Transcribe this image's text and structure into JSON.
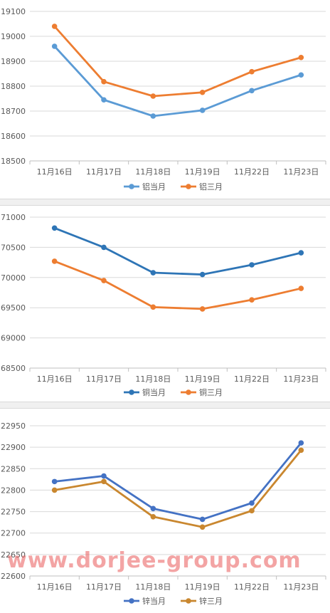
{
  "chart_data": [
    {
      "type": "line",
      "categories": [
        "11月16日",
        "11月17日",
        "11月18日",
        "11月19日",
        "11月22日",
        "11月23日"
      ],
      "ylim": [
        18500,
        19100
      ],
      "yticks": [
        18500,
        18600,
        18700,
        18800,
        18900,
        19000,
        19100
      ],
      "grid": true,
      "legend_position": "bottom",
      "series": [
        {
          "name": "铝当月",
          "color": "#5b9bd5",
          "values": [
            18960,
            18745,
            18680,
            18703,
            18782,
            18845
          ]
        },
        {
          "name": "铝三月",
          "color": "#ed7d31",
          "values": [
            19040,
            18818,
            18760,
            18775,
            18858,
            18915
          ]
        }
      ]
    },
    {
      "type": "line",
      "categories": [
        "11月16日",
        "11月17日",
        "11月18日",
        "11月19日",
        "11月22日",
        "11月23日"
      ],
      "ylim": [
        68500,
        71000
      ],
      "yticks": [
        68500,
        69000,
        69500,
        70000,
        70500,
        71000
      ],
      "grid": true,
      "legend_position": "bottom",
      "series": [
        {
          "name": "铜当月",
          "color": "#2e75b6",
          "values": [
            70820,
            70500,
            70080,
            70050,
            70210,
            70410
          ]
        },
        {
          "name": "铜三月",
          "color": "#ed7d31",
          "values": [
            70270,
            69950,
            69510,
            69480,
            69630,
            69820
          ]
        }
      ]
    },
    {
      "type": "line",
      "categories": [
        "11月16日",
        "11月17日",
        "11月18日",
        "11月19日",
        "11月22日",
        "11月23日"
      ],
      "ylim": [
        22600,
        22950
      ],
      "yticks": [
        22600,
        22650,
        22700,
        22750,
        22800,
        22850,
        22900,
        22950
      ],
      "grid": true,
      "legend_position": "bottom",
      "series": [
        {
          "name": "锌当月",
          "color": "#4472c4",
          "values": [
            22820,
            22833,
            22757,
            22732,
            22770,
            22910
          ]
        },
        {
          "name": "锌三月",
          "color": "#c9872f",
          "values": [
            22800,
            22820,
            22738,
            22714,
            22752,
            22893
          ]
        }
      ]
    }
  ],
  "watermark": "www.dorjee-group.com"
}
